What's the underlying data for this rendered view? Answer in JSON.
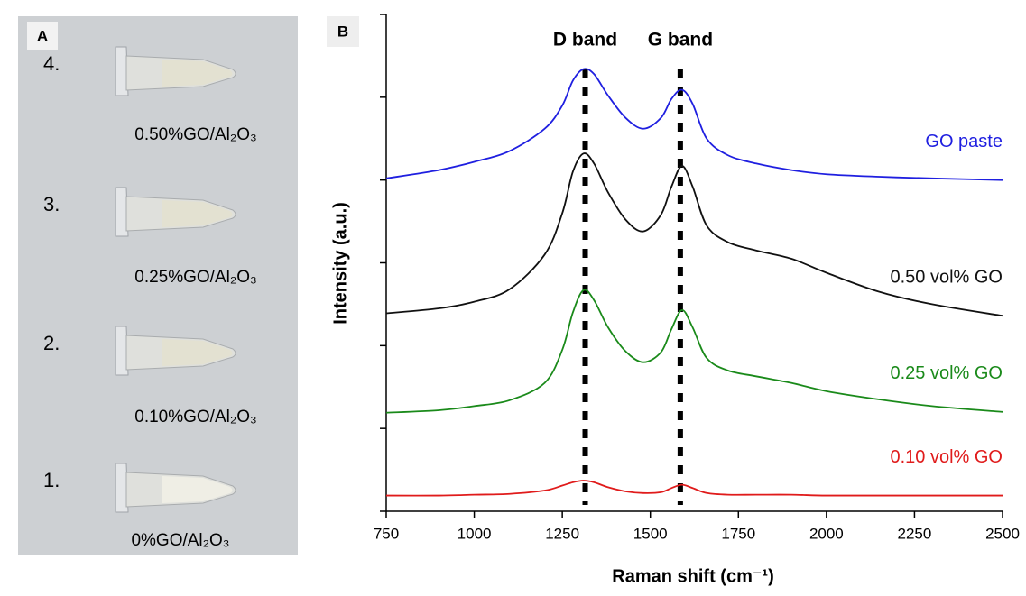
{
  "panel_a": {
    "label": "A",
    "samples": [
      {
        "number": "4.",
        "caption": "0.50%GO/Al₂O₃"
      },
      {
        "number": "3.",
        "caption": "0.25%GO/Al₂O₃"
      },
      {
        "number": "2.",
        "caption": "0.10%GO/Al₂O₃"
      },
      {
        "number": "1.",
        "caption": "0%GO/Al₂O₃"
      }
    ]
  },
  "chart_data": {
    "type": "line",
    "panel_label": "B",
    "xlabel": "Raman shift (cm⁻¹)",
    "ylabel": "Intensity (a.u.)",
    "x": [
      750,
      900,
      1000,
      1100,
      1200,
      1250,
      1280,
      1310,
      1340,
      1380,
      1430,
      1480,
      1530,
      1560,
      1590,
      1620,
      1660,
      1720,
      1800,
      1900,
      2000,
      2150,
      2300,
      2500
    ],
    "series": [
      {
        "name": "GO paste",
        "color": "#1f1fe0",
        "values": [
          4.02,
          4.12,
          4.22,
          4.35,
          4.62,
          4.9,
          5.2,
          5.34,
          5.28,
          5.02,
          4.75,
          4.62,
          4.75,
          4.98,
          5.09,
          4.92,
          4.5,
          4.3,
          4.2,
          4.12,
          4.07,
          4.04,
          4.02,
          4.0
        ]
      },
      {
        "name": "0.50 vol% GO",
        "color": "#111111",
        "values": [
          2.39,
          2.45,
          2.53,
          2.68,
          3.1,
          3.6,
          4.1,
          4.32,
          4.2,
          3.85,
          3.52,
          3.38,
          3.58,
          3.92,
          4.17,
          3.92,
          3.45,
          3.25,
          3.15,
          3.05,
          2.88,
          2.65,
          2.5,
          2.36
        ]
      },
      {
        "name": "0.25 vol% GO",
        "color": "#1a8a1a",
        "values": [
          1.19,
          1.22,
          1.27,
          1.34,
          1.55,
          1.95,
          2.4,
          2.67,
          2.55,
          2.22,
          1.93,
          1.8,
          1.92,
          2.2,
          2.43,
          2.22,
          1.85,
          1.7,
          1.63,
          1.55,
          1.45,
          1.35,
          1.27,
          1.2
        ]
      },
      {
        "name": "0.10 vol% GO",
        "color": "#e01b1b",
        "values": [
          0.19,
          0.19,
          0.2,
          0.21,
          0.25,
          0.31,
          0.35,
          0.37,
          0.35,
          0.29,
          0.24,
          0.22,
          0.23,
          0.28,
          0.32,
          0.28,
          0.22,
          0.2,
          0.2,
          0.2,
          0.19,
          0.19,
          0.19,
          0.19
        ]
      }
    ],
    "annotations": [
      {
        "text": "D band",
        "x": 1315
      },
      {
        "text": "G band",
        "x": 1585
      }
    ],
    "xlim": [
      750,
      2500
    ],
    "xticks": [
      750,
      1000,
      1250,
      1500,
      1750,
      2000,
      2250,
      2500
    ],
    "ylim": [
      0,
      6
    ],
    "yticks": [
      0,
      1,
      2,
      3,
      4,
      5,
      6
    ]
  }
}
